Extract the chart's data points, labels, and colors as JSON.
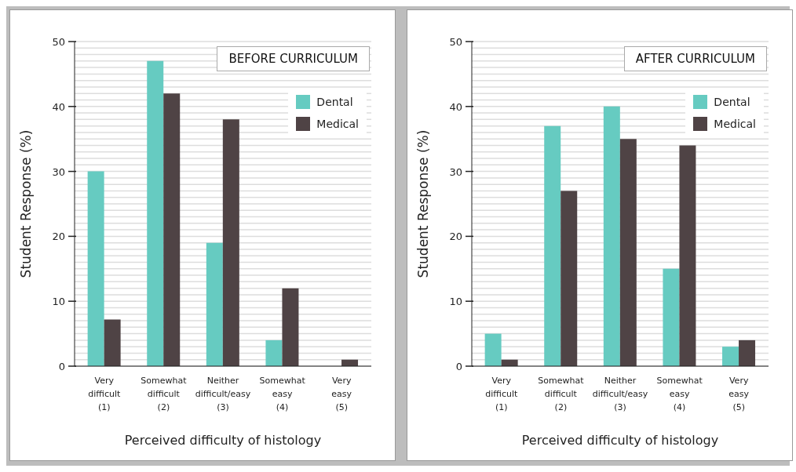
{
  "chart_data": [
    {
      "type": "bar",
      "title": "BEFORE CURRICULUM",
      "xlabel": "Perceived difficulty of histology",
      "ylabel": "Student Response (%)",
      "categories": [
        "Very\ndifficult\n(1)",
        "Somewhat\ndifficult\n(2)",
        "Neither\ndifficult/easy\n(3)",
        "Somewhat\neasy\n(4)",
        "Very\neasy\n(5)"
      ],
      "series": [
        {
          "name": "Dental",
          "color": "#66cbc1",
          "values": [
            30,
            47,
            19,
            4,
            0
          ]
        },
        {
          "name": "Medical",
          "color": "#4f4345",
          "values": [
            7.2,
            42,
            38,
            12,
            1
          ]
        }
      ],
      "ylim": [
        0,
        50
      ],
      "yticks": [
        0,
        {
          "value": 1,
          "label": null
        },
        {
          "value": 2,
          "label": null
        },
        {
          "value": 3,
          "label": null
        },
        {
          "value": 4,
          "label": null
        },
        {
          "value": 5,
          "label": null
        },
        {
          "value": 6,
          "label": null
        },
        {
          "value": 7,
          "label": null
        },
        {
          "value": 8,
          "label": null
        },
        {
          "value": 9,
          "label": null
        },
        10,
        {
          "value": 11,
          "label": null
        },
        {
          "value": 12,
          "label": null
        },
        {
          "value": 13,
          "label": null
        },
        {
          "value": 14,
          "label": null
        },
        {
          "value": 15,
          "label": null
        },
        {
          "value": 16,
          "label": null
        },
        {
          "value": 17,
          "label": null
        },
        {
          "value": 18,
          "label": null
        },
        {
          "value": 19,
          "label": null
        },
        20,
        {
          "value": 21,
          "label": null
        },
        {
          "value": 22,
          "label": null
        },
        {
          "value": 23,
          "label": null
        },
        {
          "value": 24,
          "label": null
        },
        {
          "value": 25,
          "label": null
        },
        {
          "value": 26,
          "label": null
        },
        {
          "value": 27,
          "label": null
        },
        {
          "value": 28,
          "label": null
        },
        {
          "value": 29,
          "label": null
        },
        30,
        {
          "value": 31,
          "label": null
        },
        {
          "value": 32,
          "label": null
        },
        {
          "value": 33,
          "label": null
        },
        {
          "value": 34,
          "label": null
        },
        {
          "value": 35,
          "label": null
        },
        {
          "value": 36,
          "label": null
        },
        {
          "value": 37,
          "label": null
        },
        {
          "value": 38,
          "label": null
        },
        {
          "value": 39,
          "label": null
        },
        40,
        {
          "value": 41,
          "label": null
        },
        {
          "value": 42,
          "label": null
        },
        {
          "value": 43,
          "label": null
        },
        {
          "value": 44,
          "label": null
        },
        {
          "value": 45,
          "label": null
        },
        {
          "value": 46,
          "label": null
        },
        {
          "value": 47,
          "label": null
        },
        {
          "value": 48,
          "label": null
        },
        {
          "value": 49,
          "label": null
        },
        50
      ],
      "grid": "y",
      "legend": "top right"
    },
    {
      "type": "bar",
      "title": "AFTER CURRICULUM",
      "xlabel": "Perceived difficulty of histology",
      "ylabel": "Student Response (%)",
      "categories": [
        "Very\ndifficult\n(1)",
        "Somewhat\ndifficult\n(2)",
        "Neither\ndifficult/easy\n(3)",
        "Somewhat\neasy\n(4)",
        "Very\neasy\n(5)"
      ],
      "series": [
        {
          "name": "Dental",
          "color": "#66cbc1",
          "values": [
            5,
            37,
            40,
            15,
            3
          ]
        },
        {
          "name": "Medical",
          "color": "#4f4345",
          "values": [
            1,
            27,
            35,
            34,
            4
          ]
        }
      ],
      "ylim": [
        0,
        50
      ],
      "yticks": [
        0,
        {
          "value": 1,
          "label": null
        },
        {
          "value": 2,
          "label": null
        },
        {
          "value": 3,
          "label": null
        },
        {
          "value": 4,
          "label": null
        },
        {
          "value": 5,
          "label": null
        },
        {
          "value": 6,
          "label": null
        },
        {
          "value": 7,
          "label": null
        },
        {
          "value": 8,
          "label": null
        },
        {
          "value": 9,
          "label": null
        },
        10,
        {
          "value": 11,
          "label": null
        },
        {
          "value": 12,
          "label": null
        },
        {
          "value": 13,
          "label": null
        },
        {
          "value": 14,
          "label": null
        },
        {
          "value": 15,
          "label": null
        },
        {
          "value": 16,
          "label": null
        },
        {
          "value": 17,
          "label": null
        },
        {
          "value": 18,
          "label": null
        },
        {
          "value": 19,
          "label": null
        },
        20,
        {
          "value": 21,
          "label": null
        },
        {
          "value": 22,
          "label": null
        },
        {
          "value": 23,
          "label": null
        },
        {
          "value": 24,
          "label": null
        },
        {
          "value": 25,
          "label": null
        },
        {
          "value": 26,
          "label": null
        },
        {
          "value": 27,
          "label": null
        },
        {
          "value": 28,
          "label": null
        },
        {
          "value": 29,
          "label": null
        },
        30,
        {
          "value": 31,
          "label": null
        },
        {
          "value": 32,
          "label": null
        },
        {
          "value": 33,
          "label": null
        },
        {
          "value": 34,
          "label": null
        },
        {
          "value": 35,
          "label": null
        },
        {
          "value": 36,
          "label": null
        },
        {
          "value": 37,
          "label": null
        },
        {
          "value": 38,
          "label": null
        },
        {
          "value": 39,
          "label": null
        },
        40,
        {
          "value": 41,
          "label": null
        },
        {
          "value": 42,
          "label": null
        },
        {
          "value": 43,
          "label": null
        },
        {
          "value": 44,
          "label": null
        },
        {
          "value": 45,
          "label": null
        },
        {
          "value": 46,
          "label": null
        },
        {
          "value": 47,
          "label": null
        },
        {
          "value": 48,
          "label": null
        },
        {
          "value": 49,
          "label": null
        },
        50
      ],
      "grid": "y",
      "legend": "top right"
    }
  ]
}
